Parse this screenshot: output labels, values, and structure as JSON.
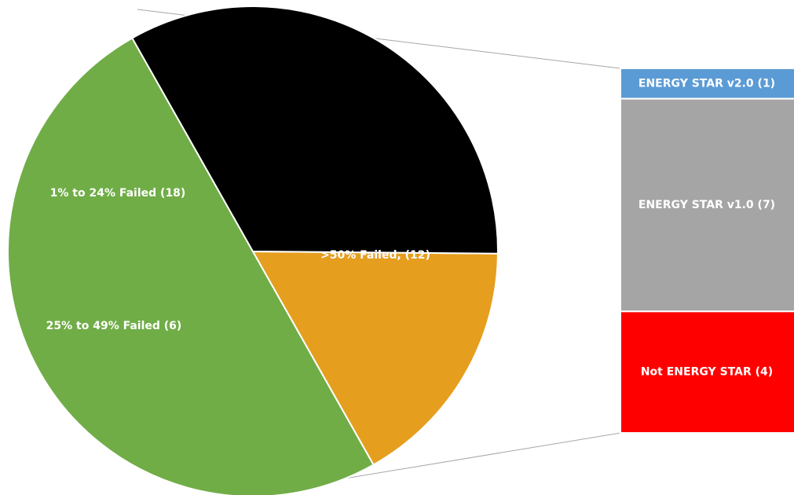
{
  "chart_data": {
    "type": "bar-of-pie",
    "title": "",
    "pie": {
      "slices": [
        {
          "label": "1% to 24% Failed (18)",
          "value": 18,
          "color": "#70ad47"
        },
        {
          "label": "25% to 49% Failed (6)",
          "value": 6,
          "color": "#e69e1f"
        },
        {
          "label": ">50% Failed, (12)",
          "value": 12,
          "color": "#000000"
        }
      ]
    },
    "bar": {
      "parent_slice": ">50% Failed, (12)",
      "segments": [
        {
          "label": "ENERGY STAR v2.0 (1)",
          "value": 1,
          "color": "#5b9bd5"
        },
        {
          "label": "ENERGY STAR v1.0 (7)",
          "value": 7,
          "color": "#a5a5a5"
        },
        {
          "label": "Not ENERGY STAR (4)",
          "value": 4,
          "color": "#ff0000"
        }
      ]
    },
    "legend": "none",
    "grid": false
  }
}
